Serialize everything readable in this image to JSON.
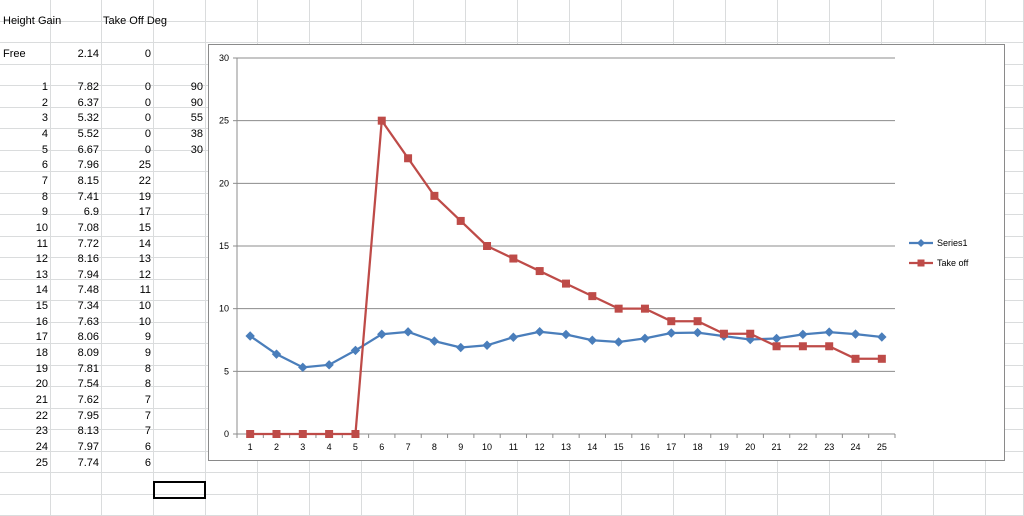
{
  "sheet": {
    "headers": [
      "Height",
      "Gain",
      "Take Off Deg"
    ],
    "free_row": {
      "label": "Free",
      "gain": "2.14",
      "takeoff": "0"
    },
    "rows": [
      {
        "height": "1",
        "gain": "7.82",
        "takeoff": "0",
        "extra": "90"
      },
      {
        "height": "2",
        "gain": "6.37",
        "takeoff": "0",
        "extra": "90"
      },
      {
        "height": "3",
        "gain": "5.32",
        "takeoff": "0",
        "extra": "55"
      },
      {
        "height": "4",
        "gain": "5.52",
        "takeoff": "0",
        "extra": "38"
      },
      {
        "height": "5",
        "gain": "6.67",
        "takeoff": "0",
        "extra": "30"
      },
      {
        "height": "6",
        "gain": "7.96",
        "takeoff": "25",
        "extra": ""
      },
      {
        "height": "7",
        "gain": "8.15",
        "takeoff": "22",
        "extra": ""
      },
      {
        "height": "8",
        "gain": "7.41",
        "takeoff": "19",
        "extra": ""
      },
      {
        "height": "9",
        "gain": "6.9",
        "takeoff": "17",
        "extra": ""
      },
      {
        "height": "10",
        "gain": "7.08",
        "takeoff": "15",
        "extra": ""
      },
      {
        "height": "11",
        "gain": "7.72",
        "takeoff": "14",
        "extra": ""
      },
      {
        "height": "12",
        "gain": "8.16",
        "takeoff": "13",
        "extra": ""
      },
      {
        "height": "13",
        "gain": "7.94",
        "takeoff": "12",
        "extra": ""
      },
      {
        "height": "14",
        "gain": "7.48",
        "takeoff": "11",
        "extra": ""
      },
      {
        "height": "15",
        "gain": "7.34",
        "takeoff": "10",
        "extra": ""
      },
      {
        "height": "16",
        "gain": "7.63",
        "takeoff": "10",
        "extra": ""
      },
      {
        "height": "17",
        "gain": "8.06",
        "takeoff": "9",
        "extra": ""
      },
      {
        "height": "18",
        "gain": "8.09",
        "takeoff": "9",
        "extra": ""
      },
      {
        "height": "19",
        "gain": "7.81",
        "takeoff": "8",
        "extra": ""
      },
      {
        "height": "20",
        "gain": "7.54",
        "takeoff": "8",
        "extra": ""
      },
      {
        "height": "21",
        "gain": "7.62",
        "takeoff": "7",
        "extra": ""
      },
      {
        "height": "22",
        "gain": "7.95",
        "takeoff": "7",
        "extra": ""
      },
      {
        "height": "23",
        "gain": "8.13",
        "takeoff": "7",
        "extra": ""
      },
      {
        "height": "24",
        "gain": "7.97",
        "takeoff": "6",
        "extra": ""
      },
      {
        "height": "25",
        "gain": "7.74",
        "takeoff": "6",
        "extra": ""
      }
    ]
  },
  "chart_data": {
    "type": "line",
    "title": "",
    "xlabel": "",
    "ylabel": "",
    "x": [
      1,
      2,
      3,
      4,
      5,
      6,
      7,
      8,
      9,
      10,
      11,
      12,
      13,
      14,
      15,
      16,
      17,
      18,
      19,
      20,
      21,
      22,
      23,
      24,
      25
    ],
    "ylim": [
      0,
      30
    ],
    "yticks": [
      0,
      5,
      10,
      15,
      20,
      25,
      30
    ],
    "grid": "horizontal",
    "legend_position": "right",
    "series": [
      {
        "name": "Series1",
        "color": "#4a7ebb",
        "marker": "diamond",
        "values": [
          7.82,
          6.37,
          5.32,
          5.52,
          6.67,
          7.96,
          8.15,
          7.41,
          6.9,
          7.08,
          7.72,
          8.16,
          7.94,
          7.48,
          7.34,
          7.63,
          8.06,
          8.09,
          7.81,
          7.54,
          7.62,
          7.95,
          8.13,
          7.97,
          7.74
        ]
      },
      {
        "name": "Take off",
        "color": "#be4b48",
        "marker": "square",
        "values": [
          0,
          0,
          0,
          0,
          0,
          25,
          22,
          19,
          17,
          15,
          14,
          13,
          12,
          11,
          10,
          10,
          9,
          9,
          8,
          8,
          7,
          7,
          7,
          6,
          6
        ]
      }
    ]
  }
}
